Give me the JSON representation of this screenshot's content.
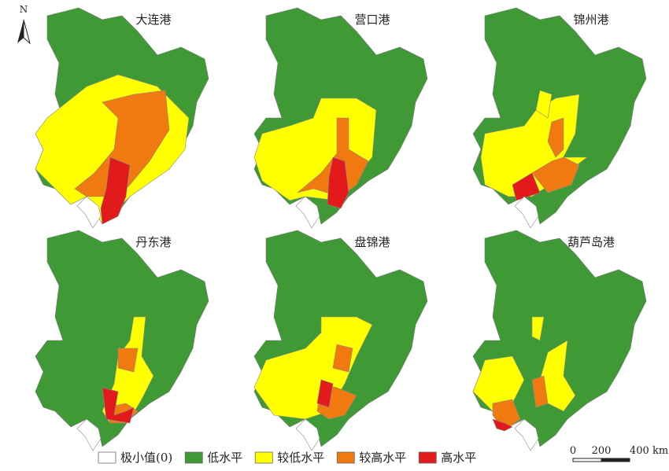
{
  "panels": [
    {
      "title": "大连港"
    },
    {
      "title": "营口港"
    },
    {
      "title": "锦州港"
    },
    {
      "title": "丹东港"
    },
    {
      "title": "盘锦港"
    },
    {
      "title": "葫芦岛港"
    }
  ],
  "north": "N",
  "legend": [
    {
      "label": "极小值(0)",
      "color": "#ffffff"
    },
    {
      "label": "低水平",
      "color": "#3f9a35"
    },
    {
      "label": "较低水平",
      "color": "#ffff00"
    },
    {
      "label": "较高水平",
      "color": "#f07a10"
    },
    {
      "label": "高水平",
      "color": "#e31a1c"
    }
  ],
  "scale": {
    "labels": [
      "0",
      "200",
      "400 km"
    ]
  }
}
